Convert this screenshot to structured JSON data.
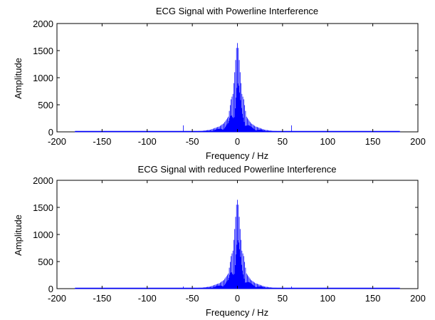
{
  "chart_data": [
    {
      "type": "line",
      "title": "ECG Signal with Powerline Interference",
      "xlabel": "Frequency / Hz",
      "ylabel": "Amplitude",
      "xlim": [
        -200,
        200
      ],
      "ylim": [
        0,
        2000
      ],
      "xticks": [
        -200,
        -150,
        -100,
        -50,
        0,
        50,
        100,
        150,
        200
      ],
      "yticks": [
        0,
        500,
        1000,
        1500,
        2000
      ],
      "grid": false,
      "series": [
        {
          "color": "#0000ff",
          "spectrum": {
            "x_range": [
              -180,
              180
            ],
            "envelope": [
              [
                -180,
                8
              ],
              [
                -60,
                10
              ],
              [
                -40,
                15
              ],
              [
                -30,
                40
              ],
              [
                -20,
                100
              ],
              [
                -15,
                160
              ],
              [
                -10,
                280
              ],
              [
                -7,
                600
              ],
              [
                -5,
                700
              ],
              [
                -3,
                1100
              ],
              [
                -1,
                1550
              ],
              [
                0,
                1640
              ],
              [
                1,
                1550
              ],
              [
                3,
                1100
              ],
              [
                5,
                700
              ],
              [
                7,
                600
              ],
              [
                10,
                280
              ],
              [
                15,
                160
              ],
              [
                20,
                100
              ],
              [
                30,
                40
              ],
              [
                40,
                15
              ],
              [
                60,
                10
              ],
              [
                180,
                8
              ]
            ],
            "peaks": [
              {
                "x": -60,
                "y": 120
              },
              {
                "x": 60,
                "y": 120
              }
            ]
          }
        }
      ]
    },
    {
      "type": "line",
      "title": "ECG Signal with reduced Powerline Interference",
      "xlabel": "Frequency / Hz",
      "ylabel": "Amplitude",
      "xlim": [
        -200,
        200
      ],
      "ylim": [
        0,
        2000
      ],
      "xticks": [
        -200,
        -150,
        -100,
        -50,
        0,
        50,
        100,
        150,
        200
      ],
      "yticks": [
        0,
        500,
        1000,
        1500,
        2000
      ],
      "grid": false,
      "series": [
        {
          "color": "#0000ff",
          "spectrum": {
            "x_range": [
              -180,
              180
            ],
            "envelope": [
              [
                -180,
                8
              ],
              [
                -60,
                10
              ],
              [
                -40,
                15
              ],
              [
                -30,
                40
              ],
              [
                -20,
                100
              ],
              [
                -15,
                160
              ],
              [
                -10,
                280
              ],
              [
                -7,
                600
              ],
              [
                -5,
                700
              ],
              [
                -3,
                1100
              ],
              [
                -1,
                1550
              ],
              [
                0,
                1640
              ],
              [
                1,
                1550
              ],
              [
                3,
                1100
              ],
              [
                5,
                700
              ],
              [
                7,
                600
              ],
              [
                10,
                280
              ],
              [
                15,
                160
              ],
              [
                20,
                100
              ],
              [
                30,
                40
              ],
              [
                40,
                15
              ],
              [
                60,
                10
              ],
              [
                180,
                8
              ]
            ],
            "peaks": [
              {
                "x": -60,
                "y": 40
              },
              {
                "x": 60,
                "y": 40
              }
            ]
          }
        }
      ]
    }
  ]
}
